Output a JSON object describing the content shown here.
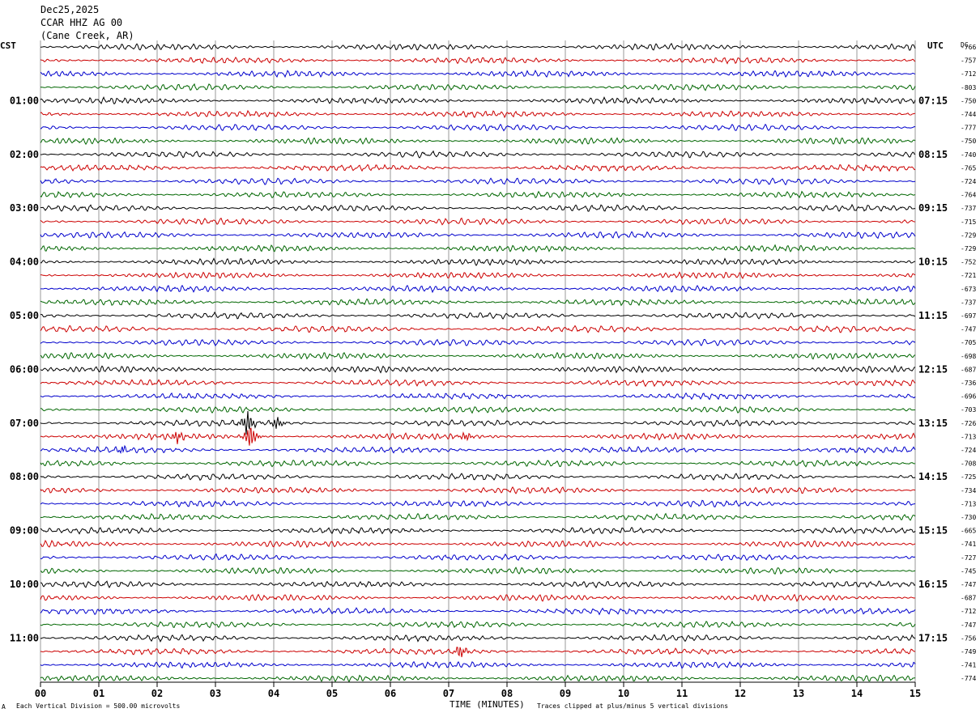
{
  "header": {
    "date": "Dec25,2025",
    "station": "CCAR HHZ AG 00",
    "location": "(Cane Creek, AR)"
  },
  "left_axis_label": "CST",
  "right_axis_label": "UTC",
  "dc_label": "DC",
  "footer": {
    "vertical_division": "Each Vertical Division =  500.00 microvolts",
    "x_title": "TIME (MINUTES)",
    "clip_note": "Traces clipped at plus/minus 5 vertical divisions",
    "corner_mark": "A"
  },
  "colors": {
    "trace_cycle": [
      "#000000",
      "#cc0000",
      "#0000cc",
      "#006600"
    ],
    "grid": "#999999"
  },
  "chart_data": {
    "type": "line",
    "title": "",
    "xlabel": "TIME (MINUTES)",
    "ylabel": "",
    "x_ticks": [
      "00",
      "01",
      "02",
      "03",
      "04",
      "05",
      "06",
      "07",
      "08",
      "09",
      "10",
      "11",
      "12",
      "13",
      "14",
      "15"
    ],
    "xlim": [
      0,
      15
    ],
    "rows_per_hour": 4,
    "row_count": 48,
    "left_hour_labels": [
      "01:00",
      "02:00",
      "03:00",
      "04:00",
      "05:00",
      "06:00",
      "07:00",
      "08:00",
      "09:00",
      "10:00",
      "11:00"
    ],
    "right_hour_labels": [
      "07:15",
      "08:15",
      "09:15",
      "10:15",
      "11:15",
      "12:15",
      "13:15",
      "14:15",
      "15:15",
      "16:15",
      "17:15"
    ],
    "dc_offsets": [
      "-766",
      "-757",
      "-712",
      "-803",
      "-750",
      "-744",
      "-777",
      "-750",
      "-740",
      "-765",
      "-724",
      "-764",
      "-737",
      "-715",
      "-729",
      "-729",
      "-752",
      "-721",
      "-673",
      "-737",
      "-697",
      "-747",
      "-705",
      "-698",
      "-687",
      "-736",
      "-696",
      "-703",
      "-726",
      "-713",
      "-724",
      "-708",
      "-725",
      "-734",
      "-713",
      "-730",
      "-665",
      "-741",
      "-727",
      "-745",
      "-747",
      "-687",
      "-712",
      "-747",
      "-756",
      "-749",
      "-741",
      "-774"
    ],
    "events": [
      {
        "row": 28,
        "minute": 3.55,
        "amplitude": "large"
      },
      {
        "row": 28,
        "minute": 4.05,
        "amplitude": "medium"
      },
      {
        "row": 29,
        "minute": 2.35,
        "amplitude": "medium"
      },
      {
        "row": 29,
        "minute": 3.6,
        "amplitude": "large"
      },
      {
        "row": 29,
        "minute": 7.3,
        "amplitude": "small"
      },
      {
        "row": 30,
        "minute": 1.4,
        "amplitude": "small"
      },
      {
        "row": 45,
        "minute": 7.2,
        "amplitude": "medium"
      }
    ],
    "grid": true,
    "legend": "none"
  }
}
